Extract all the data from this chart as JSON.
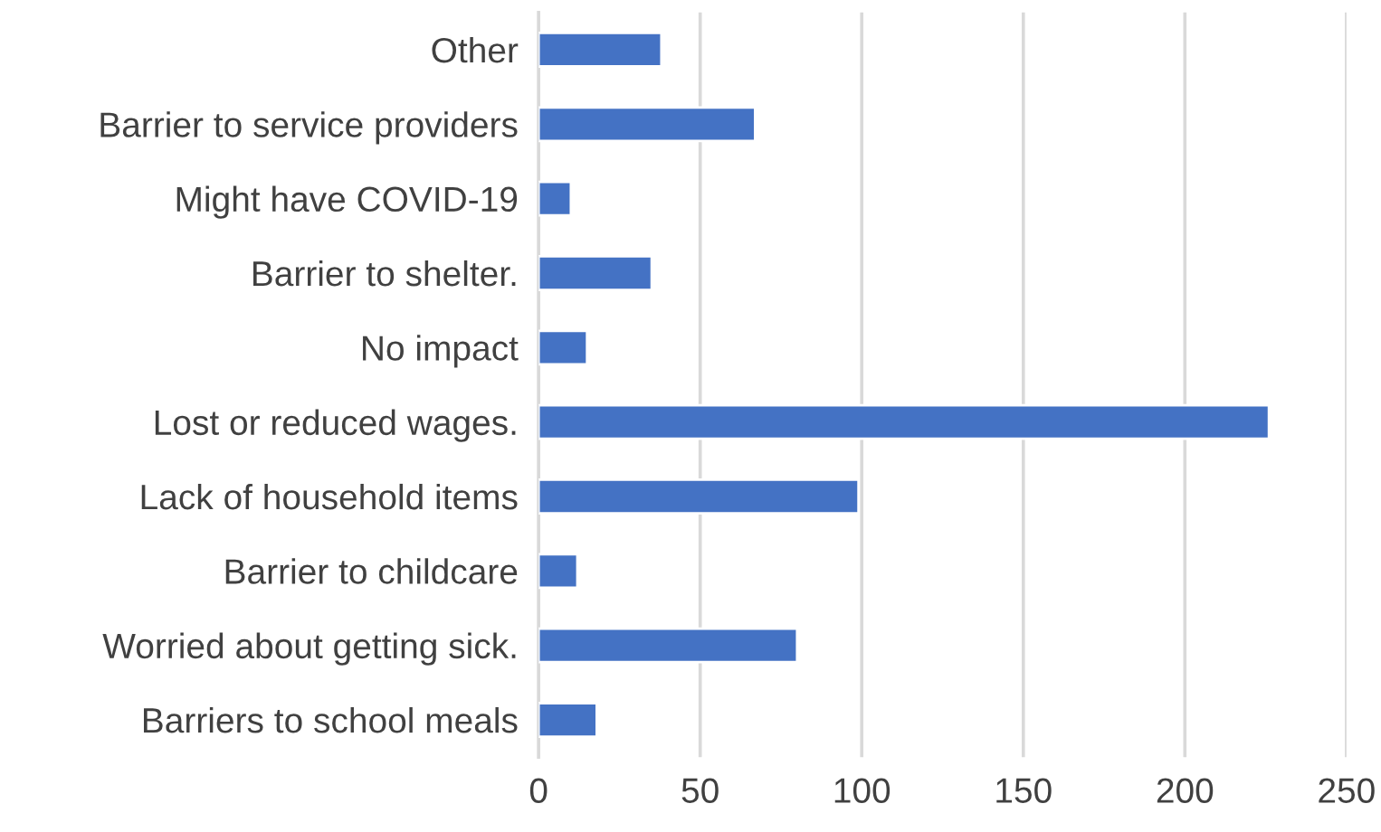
{
  "chart_data": {
    "type": "bar",
    "orientation": "horizontal",
    "categories": [
      "Other",
      "Barrier to service providers",
      "Might have COVID-19",
      "Barrier to shelter.",
      "No impact",
      "Lost or reduced wages.",
      "Lack of household items",
      "Barrier to childcare",
      "Worried about getting sick.",
      "Barriers to school meals"
    ],
    "values": [
      38,
      67,
      10,
      35,
      15,
      226,
      99,
      12,
      80,
      18
    ],
    "color": "#4472c4",
    "xlim": [
      0,
      250
    ],
    "xticks": [
      0,
      50,
      100,
      150,
      200,
      250
    ],
    "grid": "x",
    "legend": false
  }
}
